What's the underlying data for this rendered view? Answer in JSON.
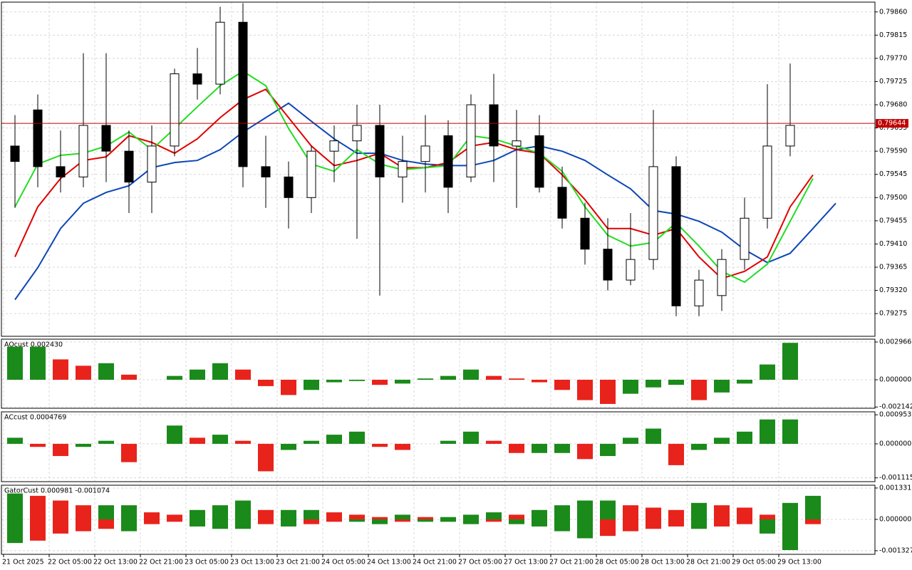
{
  "chart_data": [
    {
      "type": "candlestick",
      "categories": [
        "21 Oct 2025",
        null,
        "22 Oct 05:00",
        null,
        "22 Oct 13:00",
        null,
        "22 Oct 21:00",
        null,
        "23 Oct 05:00",
        null,
        "23 Oct 13:00",
        null,
        "23 Oct 21:00",
        null,
        "24 Oct 05:00",
        null,
        "24 Oct 13:00",
        null,
        "24 Oct 21:00",
        null,
        "27 Oct 05:00",
        null,
        "27 Oct 13:00",
        null,
        "27 Oct 21:00",
        null,
        "28 Oct 05:00",
        null,
        "28 Oct 13:00",
        null,
        "28 Oct 21:00",
        null,
        "29 Oct 05:00",
        null,
        "29 Oct 13:00",
        null,
        null,
        null
      ],
      "open": [
        0.796,
        0.7967,
        0.7956,
        0.7954,
        0.7964,
        0.7959,
        0.7953,
        0.796,
        0.7974,
        0.7972,
        0.7984,
        0.7956,
        0.7954,
        0.795,
        0.7959,
        0.7961,
        0.7964,
        0.7954,
        0.7957,
        0.7962,
        0.7954,
        0.7968,
        0.796,
        0.7962,
        0.7952,
        0.7946,
        0.794,
        0.7934,
        0.7938,
        0.7956,
        0.7929,
        0.7931,
        0.7938,
        0.7946,
        0.796,
        null,
        null,
        null
      ],
      "high": [
        0.7966,
        0.797,
        0.7963,
        0.7978,
        0.7978,
        0.7963,
        0.7964,
        0.7975,
        0.7979,
        0.7987,
        0.79877,
        0.7962,
        0.7957,
        0.796,
        0.7964,
        0.7968,
        0.7968,
        0.7962,
        0.7966,
        0.7965,
        0.797,
        0.7974,
        0.7967,
        0.7966,
        0.7956,
        0.7949,
        0.7946,
        0.7947,
        0.7967,
        0.7958,
        0.7936,
        0.794,
        0.795,
        0.7972,
        0.7976,
        null,
        null,
        null
      ],
      "low": [
        0.7948,
        0.7952,
        0.7951,
        0.7952,
        0.7953,
        0.7947,
        0.7947,
        0.7958,
        0.7969,
        0.797,
        0.7952,
        0.7948,
        0.7944,
        0.7947,
        0.7953,
        0.7942,
        0.7931,
        0.7949,
        0.7951,
        0.7947,
        0.7953,
        0.7953,
        0.7948,
        0.7951,
        0.7944,
        0.7937,
        0.7932,
        0.7933,
        0.7936,
        0.7927,
        0.7927,
        0.7928,
        0.7936,
        0.7944,
        0.7958,
        null,
        null,
        null
      ],
      "close": [
        0.7957,
        0.7956,
        0.7954,
        0.7964,
        0.7959,
        0.7953,
        0.796,
        0.7974,
        0.7972,
        0.7984,
        0.7956,
        0.7954,
        0.795,
        0.7959,
        0.7961,
        0.7964,
        0.7954,
        0.7957,
        0.796,
        0.7952,
        0.7968,
        0.796,
        0.7961,
        0.7952,
        0.7946,
        0.794,
        0.7934,
        0.7938,
        0.7956,
        0.7929,
        0.7934,
        0.7938,
        0.7946,
        0.796,
        0.7964,
        null,
        null,
        null
      ],
      "up_color": "#ffffff",
      "down_color": "#000000",
      "series": [
        {
          "name": "Jaw",
          "color": "#0d47b5",
          "values": [
            0.79302,
            0.79364,
            0.7944,
            0.79489,
            0.7951,
            0.79523,
            0.79558,
            0.79568,
            0.79572,
            0.79593,
            0.79627,
            0.79655,
            0.79683,
            0.79648,
            0.79614,
            0.79586,
            0.79586,
            0.79572,
            0.79565,
            0.79562,
            0.79562,
            0.79572,
            0.79593,
            0.796,
            0.7959,
            0.79572,
            0.79544,
            0.79517,
            0.79475,
            0.79468,
            0.79454,
            0.79433,
            0.79399,
            0.79374,
            0.79392,
            0.7944,
            0.79489,
            null
          ]
        },
        {
          "name": "Teeth",
          "color": "#e00000",
          "values": [
            0.79385,
            0.79482,
            0.79537,
            0.79572,
            0.79579,
            0.7962,
            0.79607,
            0.79586,
            0.79614,
            0.79655,
            0.7969,
            0.7971,
            0.79655,
            0.796,
            0.79562,
            0.79572,
            0.79586,
            0.79558,
            0.79558,
            0.79568,
            0.796,
            0.79607,
            0.79593,
            0.79586,
            0.79544,
            0.79496,
            0.7944,
            0.7944,
            0.79427,
            0.7944,
            0.79385,
            0.79343,
            0.79357,
            0.79385,
            0.79482,
            0.79544,
            null,
            null
          ]
        },
        {
          "name": "Lips",
          "color": "#22dd22",
          "values": [
            0.79482,
            0.79565,
            0.79582,
            0.79586,
            0.796,
            0.79627,
            0.79593,
            0.79634,
            0.79676,
            0.79717,
            0.79745,
            0.79717,
            0.79634,
            0.79565,
            0.79551,
            0.79593,
            0.79565,
            0.79554,
            0.79558,
            0.79562,
            0.7962,
            0.79614,
            0.796,
            0.79586,
            0.79551,
            0.79482,
            0.79427,
            0.79406,
            0.79413,
            0.79451,
            0.79406,
            0.79357,
            0.79336,
            0.79371,
            0.79454,
            0.79537,
            null,
            null
          ]
        }
      ],
      "price_line": {
        "value": 0.79644,
        "label": "0.79644",
        "color": "#c00000"
      },
      "ylim": [
        0.79231,
        0.79879
      ],
      "yticks": [
        {
          "value": 0.7986,
          "label": "0.79860"
        },
        0.79815,
        {
          "value": 0.7977,
          "label": "0.79770"
        },
        0.79725,
        {
          "value": 0.7968,
          "label": "0.79680"
        },
        0.79635,
        {
          "value": 0.7959,
          "label": "0.79590"
        },
        0.79545,
        {
          "value": 0.795,
          "label": "0.79500"
        },
        0.79455,
        {
          "value": 0.7941,
          "label": "0.79410"
        },
        0.79365,
        {
          "value": 0.7932,
          "label": "0.79320"
        },
        0.79275
      ],
      "grid": true
    },
    {
      "type": "histogram",
      "title": "AOcust 0.002430",
      "up_color": "#1a8a1a",
      "down_color": "#e8231b",
      "values": [
        0.0026,
        0.0026,
        0.0016,
        0.0011,
        0.0013,
        0.0004,
        0.0,
        0.0003,
        0.0008,
        0.0013,
        0.0008,
        -0.0005,
        -0.0012,
        -0.0008,
        -0.0002,
        -0.0001,
        -0.0004,
        -0.0003,
        0.0001,
        0.0003,
        0.0008,
        0.0003,
        0.0001,
        -0.0002,
        -0.0008,
        -0.0016,
        -0.0019,
        -0.0011,
        -0.0006,
        -0.0004,
        -0.0016,
        -0.001,
        -0.0003,
        0.0012,
        0.0029,
        null,
        null,
        null
      ],
      "ylim": [
        -0.00224,
        0.00319
      ],
      "yticks": [
        0.002966,
        {
          "value": 0,
          "label": "0.000000"
        },
        -0.002142
      ],
      "grid": true
    },
    {
      "type": "histogram",
      "title": "ACcust 0.0004769",
      "up_color": "#1a8a1a",
      "down_color": "#e8231b",
      "values": [
        0.0002,
        -0.0001,
        -0.0004,
        -0.0001,
        0.0001,
        -0.0006,
        0.0,
        0.0006,
        0.0002,
        0.0003,
        0.0001,
        -0.0009,
        -0.0002,
        0.0001,
        0.0003,
        0.0004,
        -0.0001,
        -0.0002,
        0.0,
        0.0001,
        0.0004,
        0.0001,
        -0.0003,
        -0.0003,
        -0.0003,
        -0.0005,
        -0.0004,
        0.0002,
        0.0005,
        -0.0007,
        -0.0002,
        0.0002,
        0.0004,
        0.0008,
        0.0008,
        null,
        null,
        null
      ],
      "ylim": [
        -0.00124,
        0.00105
      ],
      "yticks": [
        {
          "value": 0.000953,
          "label": "0.0009530"
        },
        {
          "value": 0,
          "label": "0.0000000"
        },
        -0.0011157
      ],
      "grid": true
    },
    {
      "type": "gator",
      "title": "GatorCust 0.000981 -0.001074",
      "up_color": "#1a8a1a",
      "down_color": "#e8231b",
      "upper": [
        0.0011,
        0.001,
        0.0008,
        0.0006,
        0.0006,
        0.0006,
        0.0003,
        0.0002,
        0.0004,
        0.0006,
        0.0008,
        0.0004,
        0.0004,
        0.0004,
        0.0003,
        0.0002,
        0.0001,
        0.0002,
        0.0001,
        0.0001,
        0.0002,
        0.0003,
        0.0002,
        0.0004,
        0.0006,
        0.0008,
        0.0008,
        0.0006,
        0.0005,
        0.0004,
        0.0007,
        0.0006,
        0.0005,
        0.0002,
        0.0007,
        0.001,
        null,
        null
      ],
      "lower": [
        -0.001,
        -0.0009,
        -0.0006,
        -0.0005,
        -0.0004,
        -0.0005,
        -0.0002,
        -0.0001,
        -0.0003,
        -0.0004,
        -0.0004,
        -0.0002,
        -0.0003,
        -0.0002,
        -0.0001,
        -0.0001,
        -0.0002,
        -0.0001,
        -0.0001,
        -0.0001,
        -0.0002,
        -0.0001,
        -0.0002,
        -0.0003,
        -0.0005,
        -0.0008,
        -0.0007,
        -0.0005,
        -0.0004,
        -0.0003,
        -0.0004,
        -0.0003,
        -0.0002,
        -0.0006,
        -0.0013,
        -0.0002,
        null,
        null
      ],
      "ylim": [
        -0.00148,
        0.00145
      ],
      "yticks": [
        0.001331,
        {
          "value": 0,
          "label": "0.000000"
        },
        -0.001327
      ],
      "grid": true
    }
  ]
}
